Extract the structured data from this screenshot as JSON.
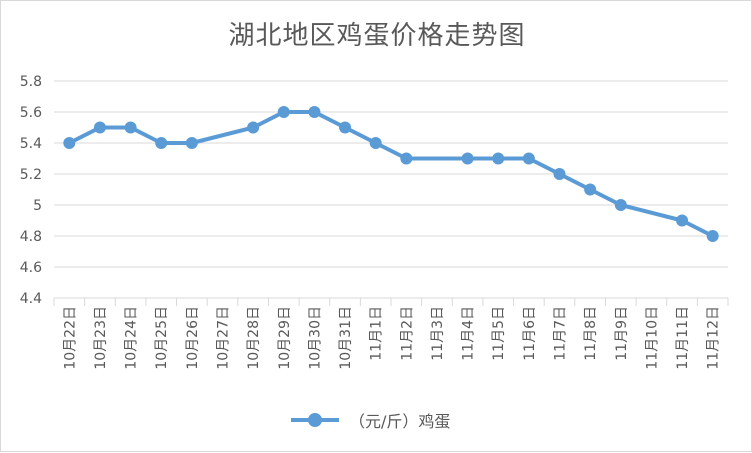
{
  "chart_data": {
    "type": "line",
    "title": "湖北地区鸡蛋价格走势图",
    "categories": [
      "10月22日",
      "10月23日",
      "10月24日",
      "10月25日",
      "10月26日",
      "10月27日",
      "10月28日",
      "10月29日",
      "10月30日",
      "10月31日",
      "11月1日",
      "11月2日",
      "11月3日",
      "11月4日",
      "11月5日",
      "11月6日",
      "11月7日",
      "11月8日",
      "11月9日",
      "11月10日",
      "11月11日",
      "11月12日"
    ],
    "series": [
      {
        "name": "（元/斤）鸡蛋",
        "color": "#5b9bd5",
        "values": [
          5.4,
          5.5,
          5.5,
          5.4,
          5.4,
          null,
          5.5,
          5.6,
          5.6,
          5.5,
          5.4,
          5.3,
          null,
          5.3,
          5.3,
          5.3,
          5.2,
          5.1,
          5.0,
          null,
          4.9,
          4.8
        ]
      }
    ],
    "yticks": [
      "4.4",
      "4.6",
      "4.8",
      "5",
      "5.2",
      "5.4",
      "5.6",
      "5.8"
    ],
    "ylim": [
      4.4,
      5.8
    ],
    "grid": true,
    "legend_position": "bottom",
    "gaps": "connected"
  }
}
